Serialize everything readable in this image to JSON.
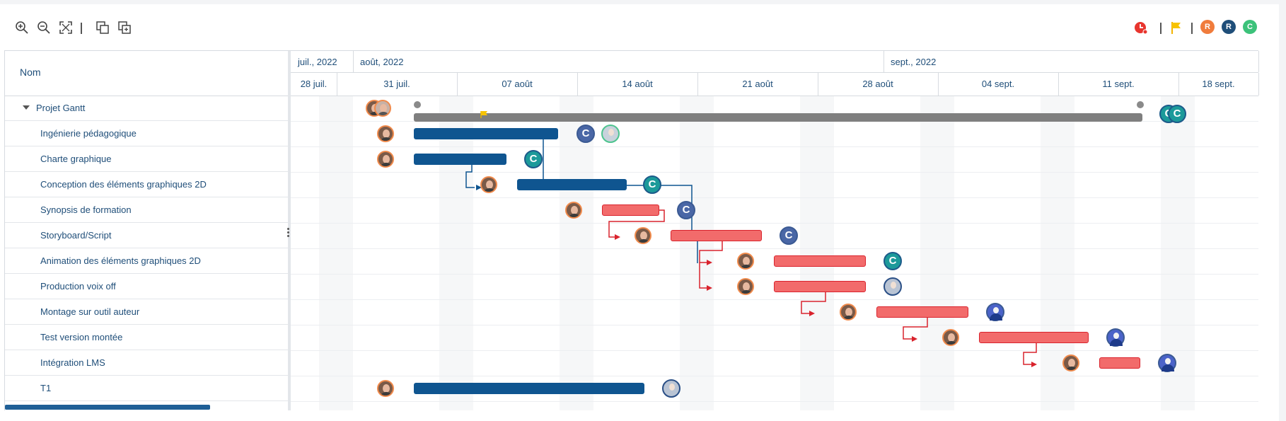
{
  "toolbar": {
    "left_icons": [
      "zoom-in-icon",
      "zoom-out-icon",
      "fit-screen-icon",
      "copy-icon",
      "paste-icon"
    ],
    "right": {
      "critical_icon": "alarm-icon",
      "flag_icon": "flag-icon",
      "badges": [
        {
          "label": "R",
          "color": "#f07c3c"
        },
        {
          "label": "R",
          "color": "#1f4e79"
        },
        {
          "label": "C",
          "color": "#3cc27a"
        }
      ]
    }
  },
  "grid": {
    "column_header": "Nom",
    "rows": [
      {
        "label": "Projet Gantt",
        "type": "project"
      },
      {
        "label": "Ingénierie pédagogique",
        "type": "task"
      },
      {
        "label": "Charte graphique",
        "type": "task"
      },
      {
        "label": "Conception des éléments graphiques 2D",
        "type": "task"
      },
      {
        "label": "Synopsis de formation",
        "type": "task"
      },
      {
        "label": "Storyboard/Script",
        "type": "task"
      },
      {
        "label": "Animation des éléments graphiques 2D",
        "type": "task"
      },
      {
        "label": "Production voix off",
        "type": "task"
      },
      {
        "label": "Montage sur outil auteur",
        "type": "task"
      },
      {
        "label": "Test version montée",
        "type": "task"
      },
      {
        "label": "Intégration LMS",
        "type": "task"
      },
      {
        "label": "T1",
        "type": "task"
      }
    ]
  },
  "timeline": {
    "months": [
      "juil., 2022",
      "août, 2022",
      "sept., 2022"
    ],
    "weeks": [
      "28 juil.",
      "31 juil.",
      "07 août",
      "14 août",
      "21 août",
      "28 août",
      "04 sept.",
      "11 sept.",
      "18 sept."
    ]
  },
  "colors": {
    "done": "#0f5590",
    "critical": "#f26b6b",
    "critical_border": "#d9232d",
    "summary": "#7f7f7f",
    "accent_text": "#1f4e79"
  }
}
